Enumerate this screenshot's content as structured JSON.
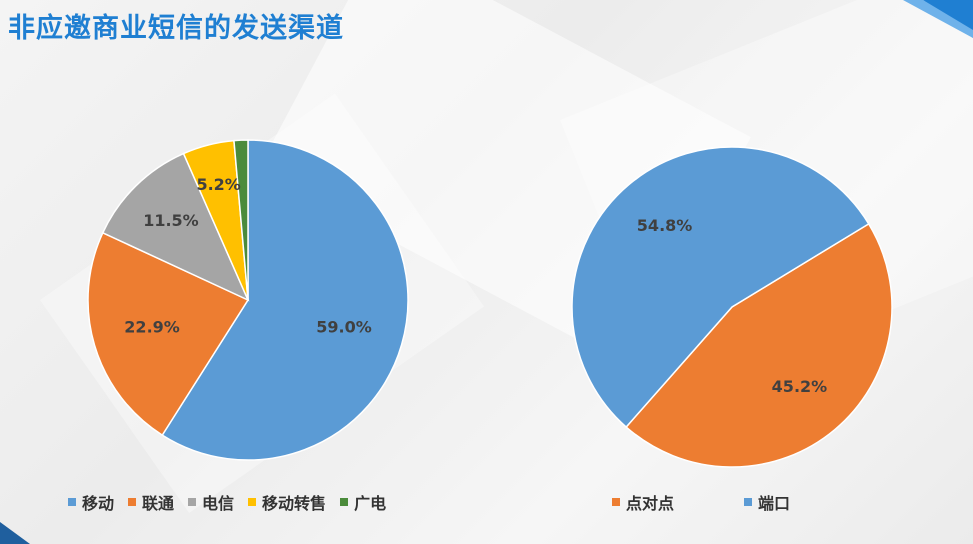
{
  "page": {
    "title": "非应邀商业短信的发送渠道"
  },
  "chart_data": [
    {
      "type": "pie",
      "categories": [
        "移动",
        "联通",
        "电信",
        "移动转售",
        "广电"
      ],
      "values": [
        59.0,
        22.9,
        11.5,
        5.2,
        1.4
      ],
      "labels": [
        "59.0%",
        "22.9%",
        "11.5%",
        "5.2%",
        "1.4%"
      ],
      "colors": [
        "#5b9bd5",
        "#ed7d31",
        "#a5a5a5",
        "#ffc000",
        "#4b8b3b"
      ],
      "legend_position": "bottom"
    },
    {
      "type": "pie",
      "categories": [
        "点对点",
        "端口"
      ],
      "values": [
        45.2,
        54.8
      ],
      "labels": [
        "45.2%",
        "54.8%"
      ],
      "colors": [
        "#ed7d31",
        "#5b9bd5"
      ],
      "legend_position": "bottom"
    }
  ]
}
